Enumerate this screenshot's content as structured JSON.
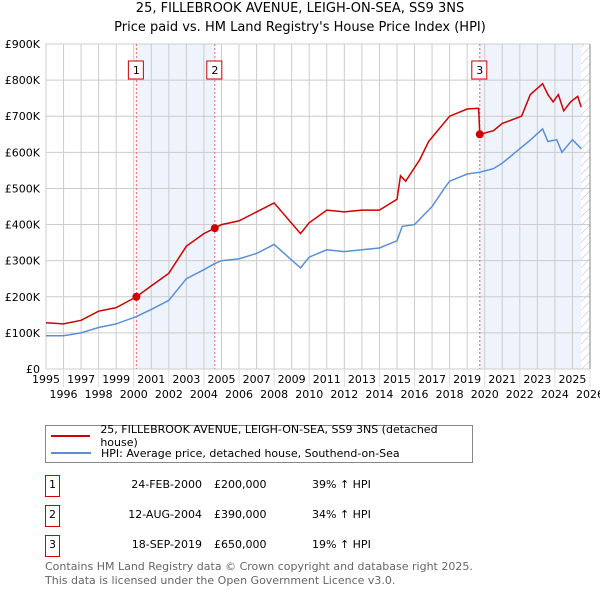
{
  "title": "25, FILLEBROOK AVENUE, LEIGH-ON-SEA, SS9 3NS",
  "subtitle": "Price paid vs. HM Land Registry's House Price Index (HPI)",
  "chart_data": {
    "type": "line",
    "title": "25, FILLEBROOK AVENUE, LEIGH-ON-SEA, SS9 3NS",
    "subtitle": "Price paid vs. HM Land Registry's House Price Index (HPI)",
    "xlim": [
      1995,
      2026
    ],
    "ylim": [
      0,
      900000
    ],
    "grid": true,
    "x_ticks": [
      "1995",
      "1996",
      "1997",
      "1998",
      "1999",
      "2000",
      "2001",
      "2002",
      "2003",
      "2004",
      "2005",
      "2006",
      "2007",
      "2008",
      "2009",
      "2010",
      "2011",
      "2012",
      "2013",
      "2014",
      "2015",
      "2016",
      "2017",
      "2018",
      "2019",
      "2020",
      "2021",
      "2022",
      "2023",
      "2024",
      "2025",
      "2026"
    ],
    "y_ticks": [
      {
        "v": 0,
        "label": "£0"
      },
      {
        "v": 100000,
        "label": "£100K"
      },
      {
        "v": 200000,
        "label": "£200K"
      },
      {
        "v": 300000,
        "label": "£300K"
      },
      {
        "v": 400000,
        "label": "£400K"
      },
      {
        "v": 500000,
        "label": "£500K"
      },
      {
        "v": 600000,
        "label": "£600K"
      },
      {
        "v": 700000,
        "label": "£700K"
      },
      {
        "v": 800000,
        "label": "£800K"
      },
      {
        "v": 900000,
        "label": "£900K"
      }
    ],
    "shaded_ranges": [
      [
        2000.15,
        2004.62
      ],
      [
        2019.72,
        2025.5
      ]
    ],
    "hatched_from": 2025.5,
    "series": [
      {
        "name": "25, FILLEBROOK AVENUE, LEIGH-ON-SEA, SS9 3NS (detached house)",
        "color": "#cc0000",
        "x": [
          1995,
          1996,
          1997,
          1998,
          1999,
          2000.15,
          2001,
          2002,
          2003,
          2004,
          2004.62,
          2005,
          2006,
          2007,
          2008,
          2009.5,
          2010,
          2011,
          2012,
          2013,
          2014,
          2015,
          2015.2,
          2015.5,
          2016.3,
          2016.8,
          2017.4,
          2018,
          2019,
          2019.65,
          2019.72,
          2020.5,
          2021,
          2022.1,
          2022.6,
          2023.3,
          2023.6,
          2023.9,
          2024.2,
          2024.5,
          2024.9,
          2025.3,
          2025.5
        ],
        "y": [
          128000,
          125000,
          135000,
          160000,
          170000,
          200000,
          230000,
          265000,
          340000,
          375000,
          390000,
          400000,
          410000,
          435000,
          460000,
          375000,
          405000,
          440000,
          435000,
          440000,
          440000,
          470000,
          535000,
          520000,
          580000,
          630000,
          665000,
          700000,
          720000,
          722000,
          650000,
          660000,
          680000,
          700000,
          760000,
          790000,
          760000,
          740000,
          760000,
          715000,
          740000,
          755000,
          725000
        ]
      },
      {
        "name": "HPI: Average price, detached house, Southend-on-Sea",
        "color": "#5b8fd4",
        "x": [
          1995,
          1996,
          1997,
          1998,
          1999,
          2000.15,
          2001,
          2002,
          2003,
          2004,
          2004.62,
          2005,
          2006,
          2007,
          2008,
          2009.5,
          2010,
          2011,
          2012,
          2013,
          2014,
          2015,
          2015.3,
          2016,
          2017,
          2017.7,
          2018,
          2019,
          2019.72,
          2020.5,
          2021,
          2022,
          2022.5,
          2023.3,
          2023.6,
          2024.1,
          2024.4,
          2025,
          2025.5
        ],
        "y": [
          92000,
          92000,
          100000,
          115000,
          125000,
          145000,
          165000,
          190000,
          250000,
          275000,
          292000,
          300000,
          305000,
          320000,
          345000,
          280000,
          310000,
          330000,
          325000,
          330000,
          335000,
          355000,
          395000,
          400000,
          450000,
          500000,
          520000,
          540000,
          545000,
          555000,
          570000,
          610000,
          630000,
          665000,
          630000,
          635000,
          600000,
          635000,
          610000
        ]
      }
    ],
    "sales": [
      {
        "n": "1",
        "x": 2000.15,
        "y": 200000
      },
      {
        "n": "2",
        "x": 2004.62,
        "y": 390000
      },
      {
        "n": "3",
        "x": 2019.72,
        "y": 650000
      }
    ],
    "legend_position": "below"
  },
  "legend": {
    "property": "25, FILLEBROOK AVENUE, LEIGH-ON-SEA, SS9 3NS (detached house)",
    "hpi": "HPI: Average price, detached house, Southend-on-Sea"
  },
  "table": [
    {
      "n": "1",
      "date": "24-FEB-2000",
      "price": "£200,000",
      "hpi": "39% ↑ HPI"
    },
    {
      "n": "2",
      "date": "12-AUG-2004",
      "price": "£390,000",
      "hpi": "34% ↑ HPI"
    },
    {
      "n": "3",
      "date": "18-SEP-2019",
      "price": "£650,000",
      "hpi": "19% ↑ HPI"
    }
  ],
  "footer": {
    "line1": "Contains HM Land Registry data © Crown copyright and database right 2025.",
    "line2": "This data is licensed under the Open Government Licence v3.0."
  }
}
